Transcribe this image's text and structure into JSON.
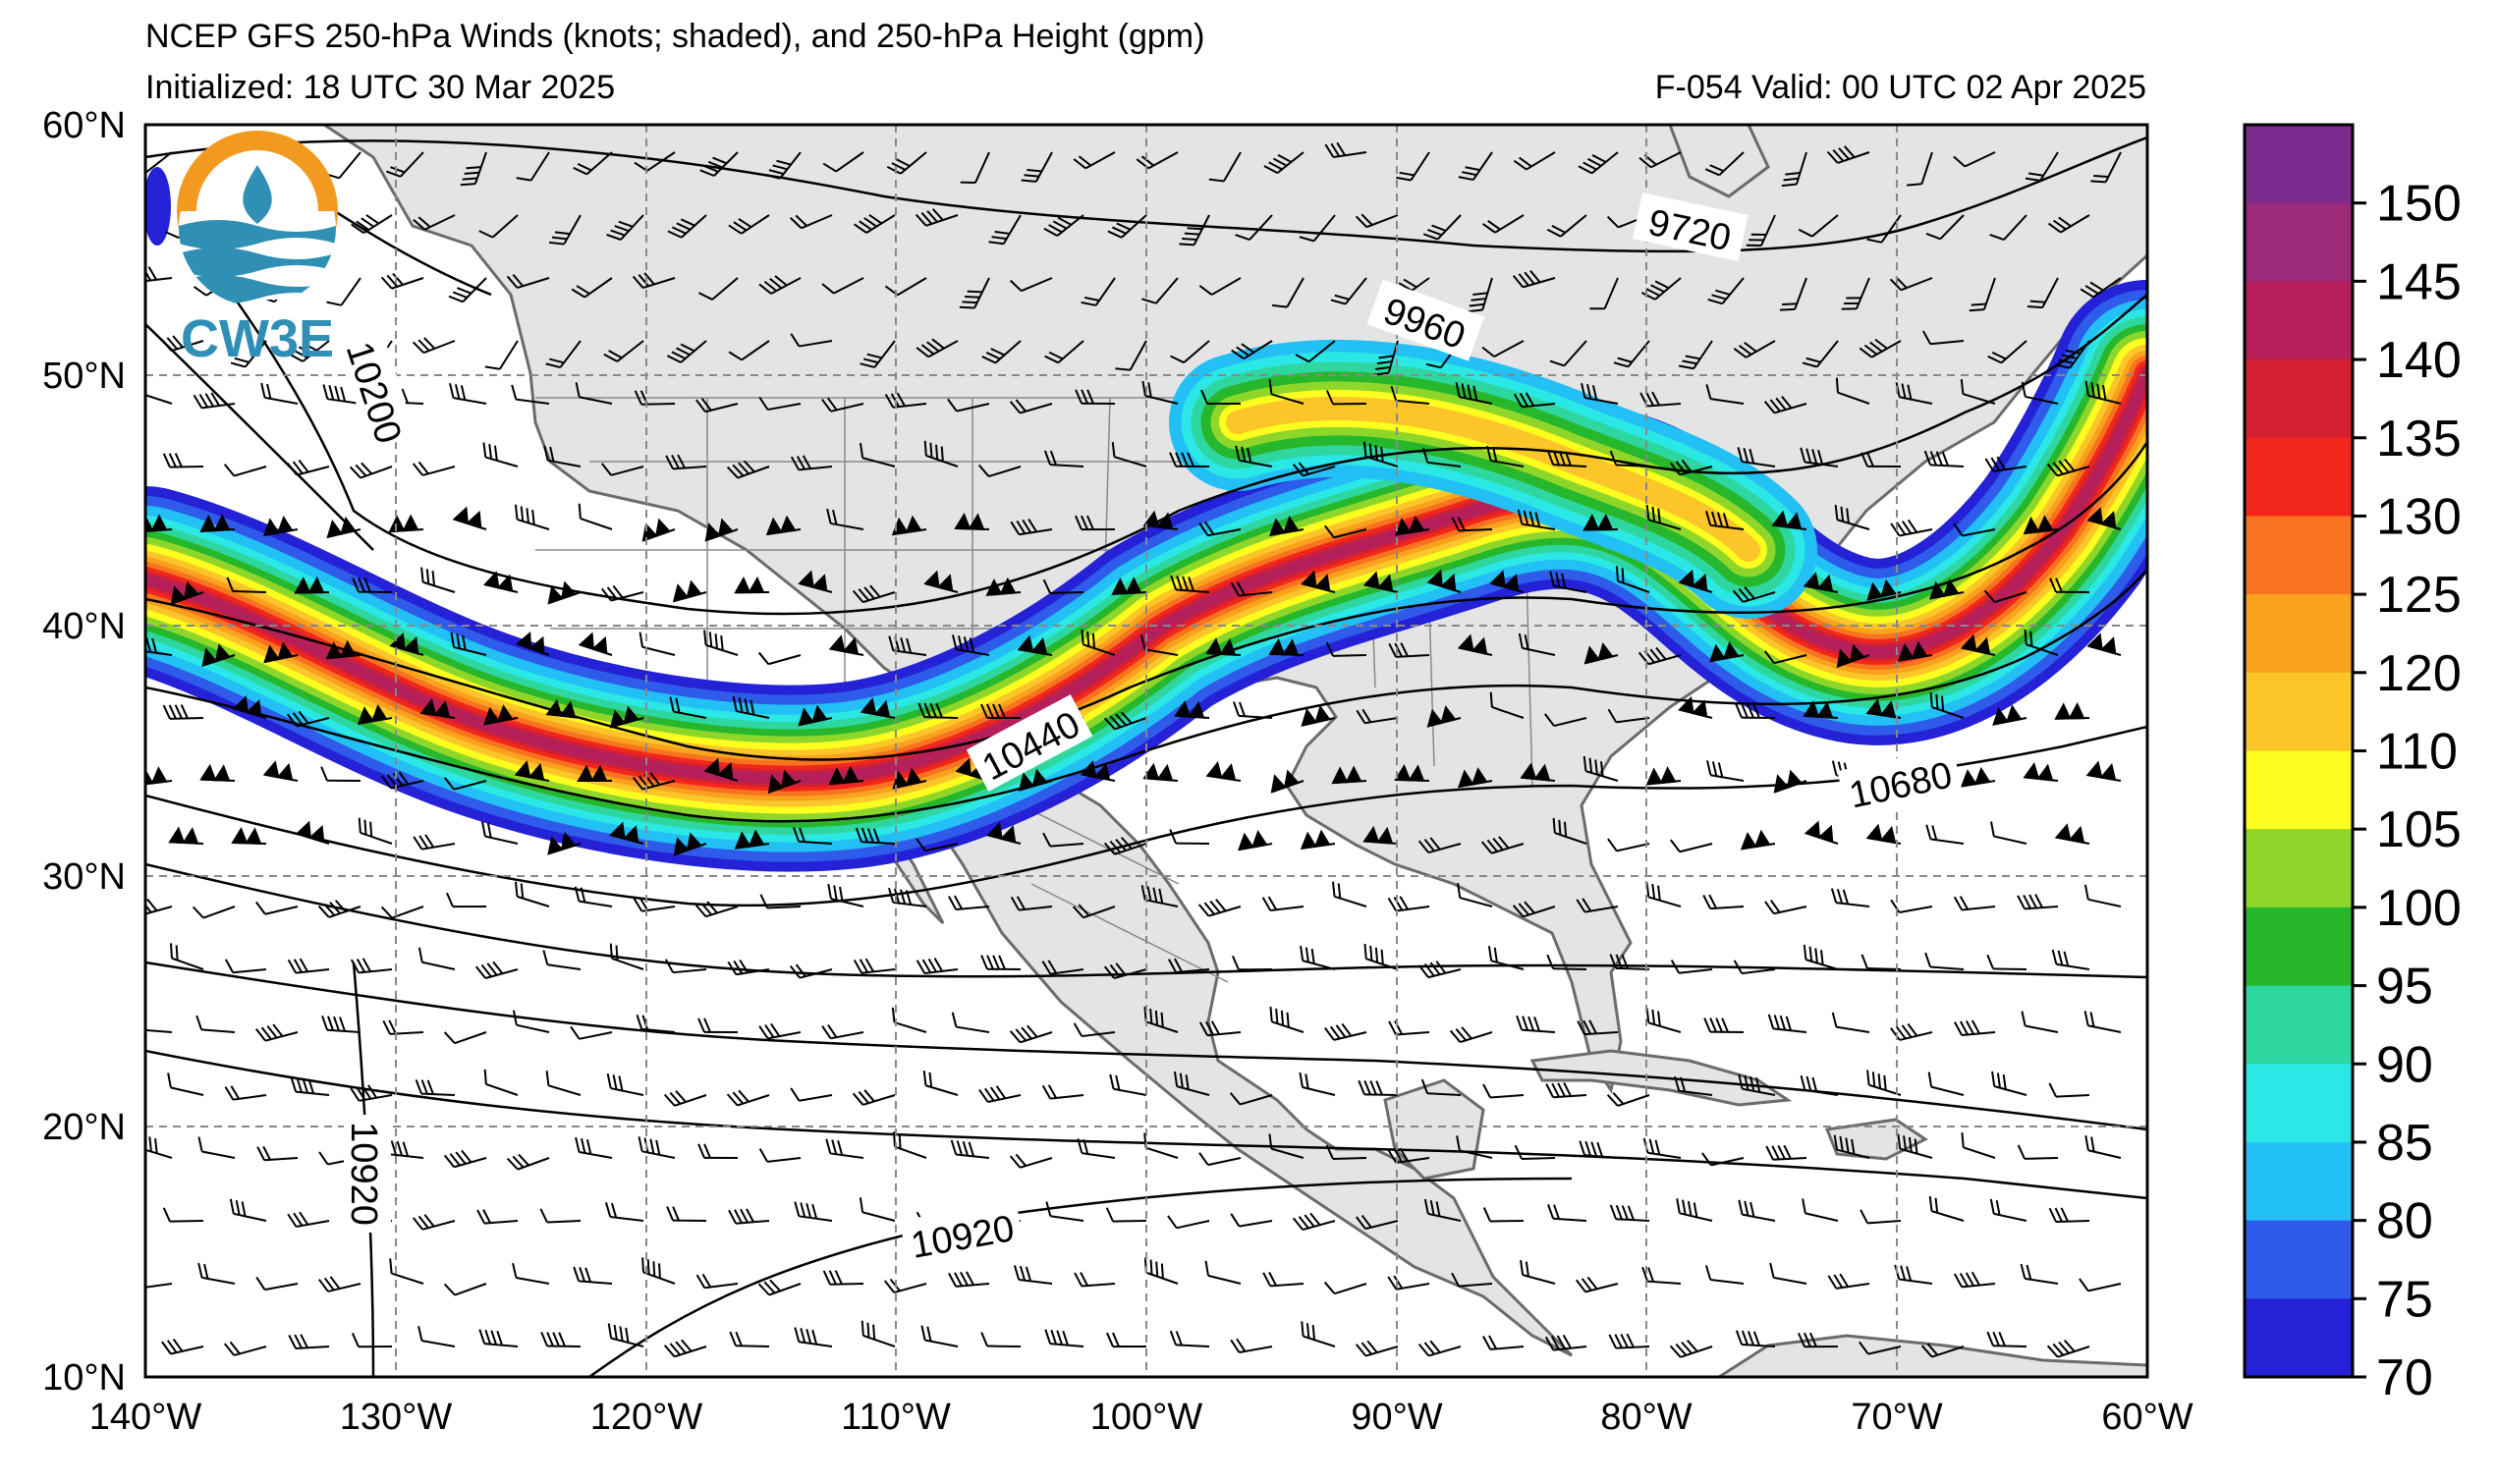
{
  "header": {
    "title": "NCEP GFS 250-hPa Winds (knots; shaded), and 250-hPa Height (gpm)",
    "initialized": "Initialized: 18 UTC 30 Mar 2025",
    "valid": "F-054  Valid: 00 UTC 02 Apr 2025"
  },
  "logo": {
    "text": "CW3E"
  },
  "axes": {
    "lat_labels": [
      "60°N",
      "50°N",
      "40°N",
      "30°N",
      "20°N",
      "10°N"
    ],
    "lon_labels": [
      "140°W",
      "130°W",
      "120°W",
      "110°W",
      "100°W",
      "90°W",
      "80°W",
      "70°W",
      "60°W"
    ],
    "lat_range": [
      10,
      60
    ],
    "lon_range": [
      -140,
      -60
    ],
    "grid": "dashed"
  },
  "colorbar": {
    "ticks": [
      "150",
      "145",
      "140",
      "135",
      "130",
      "125",
      "120",
      "110",
      "105",
      "100",
      "95",
      "90",
      "85",
      "80",
      "75",
      "70"
    ],
    "colors": [
      "#7b2b8e",
      "#9b2a78",
      "#b6205a",
      "#d42031",
      "#f3261c",
      "#f7731f",
      "#f9a21e",
      "#fcc52a",
      "#fdfd1f",
      "#8fd62b",
      "#27b72c",
      "#2fd7a0",
      "#2be8e6",
      "#22c0f5",
      "#2e5be9",
      "#2421d6"
    ]
  },
  "contour_labels": [
    "9720",
    "9960",
    "10200",
    "10440",
    "10680",
    "10920",
    "10920",
    "10920"
  ],
  "colors": {
    "land": "#e4e4e4",
    "ocean": "#ffffff",
    "coast": "#6b6b6b"
  }
}
